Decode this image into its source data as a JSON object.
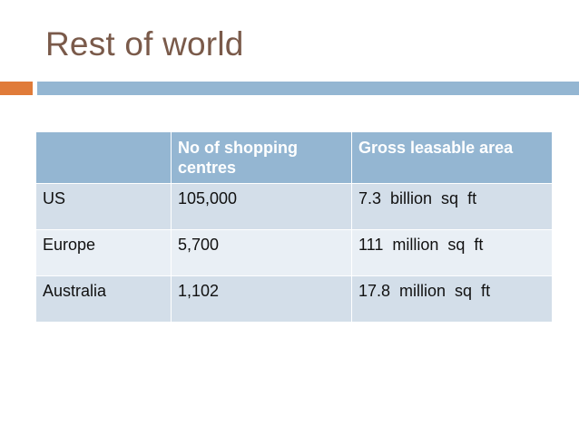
{
  "slide": {
    "title": "Rest of world"
  },
  "table": {
    "headers": [
      "",
      "No of shopping centres",
      "Gross leasable area"
    ],
    "rows": [
      [
        "US",
        "105,000",
        "7.3  billion  sq  ft"
      ],
      [
        "Europe",
        "5,700",
        "111  million  sq  ft"
      ],
      [
        "Australia",
        "1,102",
        "17.8  million  sq  ft"
      ]
    ]
  },
  "colors": {
    "title": "#7a5a4a",
    "accent_orange": "#e07b39",
    "accent_blue": "#94b6d2",
    "header_fill": "#94b6d2",
    "row_fill_dark": "#d3dee9",
    "row_fill_light": "#e9eff5"
  }
}
